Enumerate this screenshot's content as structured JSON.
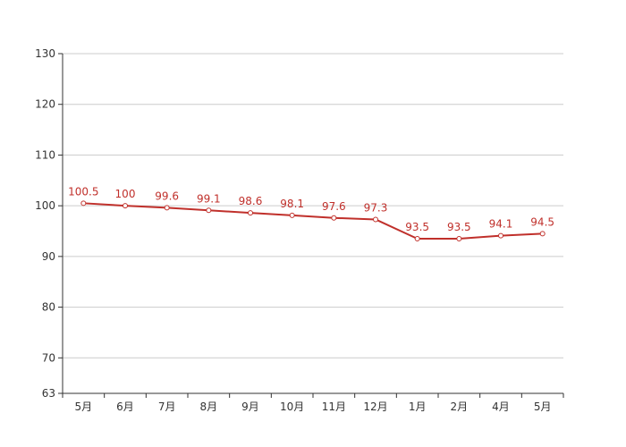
{
  "chart_data": {
    "type": "line",
    "categories": [
      "5月",
      "6月",
      "7月",
      "8月",
      "9月",
      "10月",
      "11月",
      "12月",
      "1月",
      "2月",
      "4月",
      "5月"
    ],
    "series": [
      {
        "values": [
          100.5,
          100,
          99.6,
          99.1,
          98.6,
          98.1,
          97.6,
          97.3,
          93.5,
          93.5,
          94.1,
          94.5
        ]
      }
    ],
    "ylim": [
      63,
      130
    ],
    "yticks": [
      63,
      70,
      80,
      90,
      100,
      110,
      120,
      130
    ],
    "grid": true,
    "line_color": "#c0302b",
    "grid_color": "#cccccc",
    "axis_color": "#333333"
  }
}
